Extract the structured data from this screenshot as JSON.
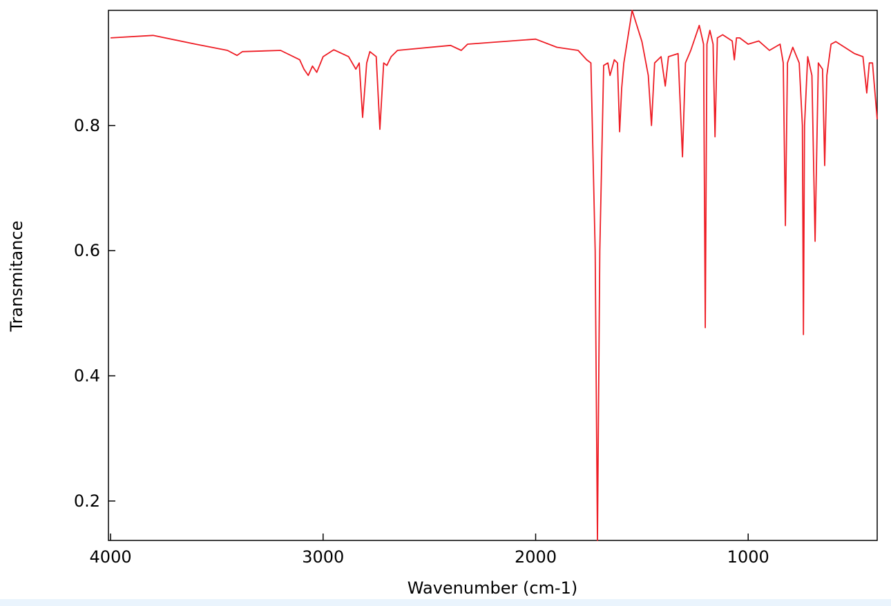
{
  "chart_data": {
    "type": "line",
    "x_label": "Wavenumber (cm-1)",
    "y_label": "Transmitance",
    "x": [
      4000,
      3800,
      3600,
      3450,
      3405,
      3380,
      3200,
      3110,
      3090,
      3070,
      3050,
      3030,
      3000,
      2950,
      2880,
      2846,
      2830,
      2814,
      2795,
      2780,
      2750,
      2733,
      2715,
      2700,
      2680,
      2650,
      2400,
      2350,
      2320,
      2000,
      1900,
      1800,
      1760,
      1740,
      1720,
      1709,
      1698,
      1680,
      1660,
      1650,
      1630,
      1615,
      1605,
      1595,
      1585,
      1546,
      1500,
      1470,
      1455,
      1440,
      1410,
      1390,
      1375,
      1330,
      1309,
      1295,
      1270,
      1230,
      1210,
      1202,
      1194,
      1180,
      1165,
      1156,
      1145,
      1120,
      1075,
      1065,
      1055,
      1040,
      1000,
      950,
      900,
      850,
      835,
      825,
      815,
      790,
      760,
      745,
      740,
      735,
      720,
      700,
      685,
      670,
      650,
      640,
      630,
      610,
      588,
      500,
      460,
      442,
      430,
      415,
      393
    ],
    "values": [
      0.94,
      0.944,
      0.93,
      0.92,
      0.912,
      0.918,
      0.92,
      0.905,
      0.89,
      0.88,
      0.895,
      0.885,
      0.91,
      0.921,
      0.91,
      0.89,
      0.9,
      0.813,
      0.9,
      0.918,
      0.91,
      0.794,
      0.9,
      0.896,
      0.91,
      0.92,
      0.928,
      0.92,
      0.93,
      0.938,
      0.925,
      0.92,
      0.905,
      0.9,
      0.6,
      0.137,
      0.6,
      0.896,
      0.9,
      0.88,
      0.905,
      0.9,
      0.79,
      0.86,
      0.9,
      0.984,
      0.934,
      0.88,
      0.8,
      0.9,
      0.91,
      0.863,
      0.91,
      0.915,
      0.75,
      0.9,
      0.92,
      0.96,
      0.93,
      0.477,
      0.93,
      0.952,
      0.93,
      0.782,
      0.94,
      0.945,
      0.935,
      0.905,
      0.94,
      0.94,
      0.93,
      0.935,
      0.92,
      0.93,
      0.9,
      0.64,
      0.9,
      0.925,
      0.9,
      0.8,
      0.466,
      0.8,
      0.91,
      0.88,
      0.615,
      0.9,
      0.89,
      0.736,
      0.88,
      0.93,
      0.934,
      0.915,
      0.91,
      0.852,
      0.9,
      0.9,
      0.81
    ],
    "color": "#ee1c24",
    "xlim": [
      4010,
      393
    ],
    "ylim": [
      0.137,
      0.984
    ],
    "xticks": [
      4000,
      3000,
      2000,
      1000
    ],
    "yticks": [
      0.2,
      0.4,
      0.6,
      0.8
    ]
  }
}
